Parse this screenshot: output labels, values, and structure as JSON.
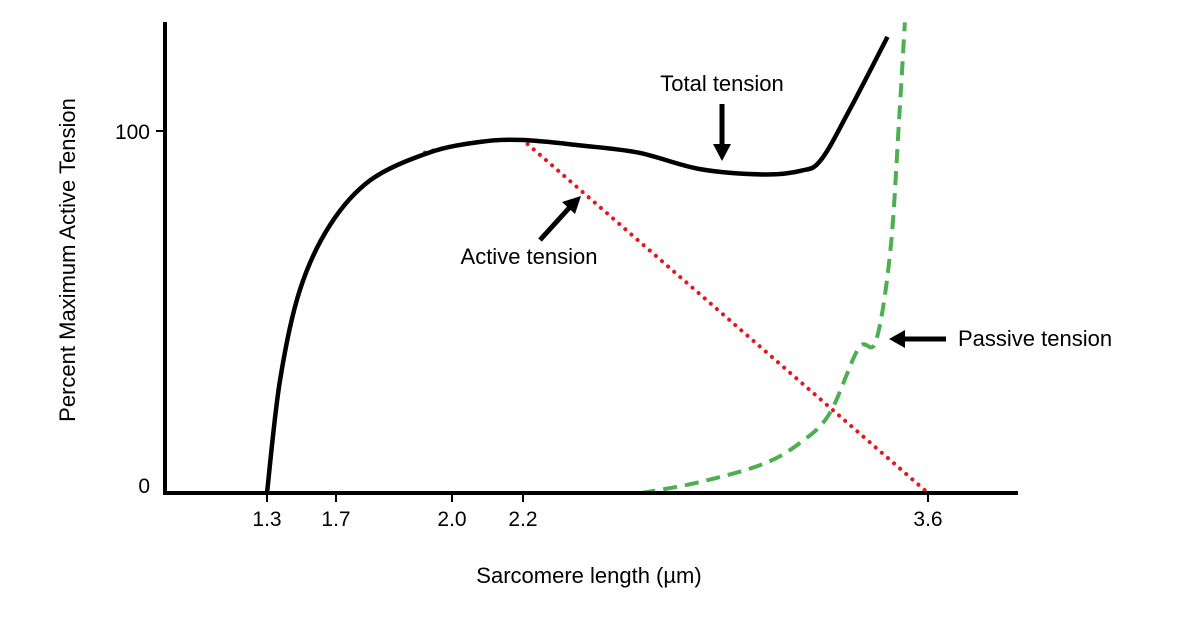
{
  "chart_data": {
    "type": "line",
    "title": "",
    "xlabel": "Sarcomere length (µm)",
    "ylabel": "Percent Maximum Active Tension",
    "x_ticks": [
      1.3,
      1.7,
      2.0,
      2.2,
      3.6
    ],
    "x_tick_labels": [
      "1.3",
      "1.7",
      "2.0",
      "2.2",
      "3.6"
    ],
    "y_ticks": [
      0,
      100
    ],
    "y_tick_labels": [
      "0",
      "100"
    ],
    "ylim": [
      0,
      130
    ],
    "grid": false,
    "series": [
      {
        "name": "Total tension",
        "style": "solid",
        "color": "#000000",
        "x": [
          1.3,
          1.375,
          1.49,
          1.665,
          1.79,
          1.94,
          2.08,
          2.2,
          2.4,
          2.6,
          2.81,
          3.03,
          3.16,
          3.23,
          3.33,
          3.46
        ],
        "y": [
          0,
          31,
          56,
          74,
          86.5,
          94,
          97,
          97.5,
          96,
          94,
          89.5,
          88,
          89,
          92,
          106,
          126
        ]
      },
      {
        "name": "Active tension",
        "style": "dotted",
        "color": "#e8141b",
        "x": [
          1.93,
          2.2,
          3.6
        ],
        "y": [
          94,
          97.5,
          0
        ]
      },
      {
        "name": "Passive tension",
        "style": "dashed",
        "color": "#4caf50",
        "x": [
          2.61,
          2.81,
          3.03,
          3.16,
          3.26,
          3.36,
          3.42,
          3.47,
          3.5,
          3.52
        ],
        "y": [
          0,
          3,
          8,
          14,
          22,
          40,
          42,
          67,
          103,
          130
        ]
      }
    ],
    "annotations": [
      "Total tension",
      "Active tension",
      "Passive tension"
    ]
  }
}
